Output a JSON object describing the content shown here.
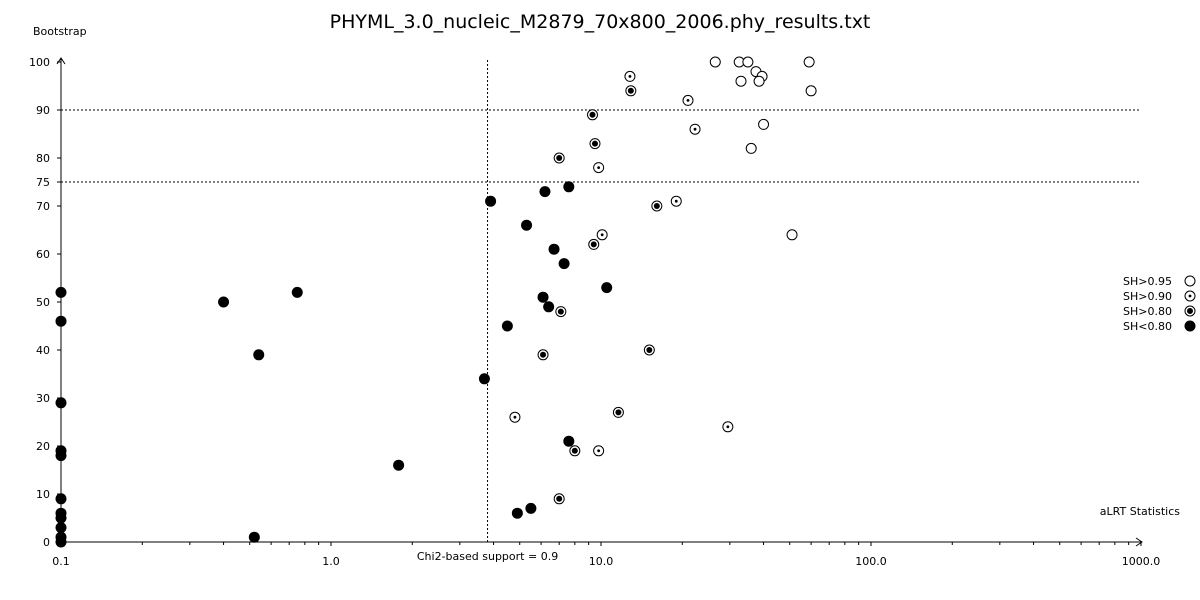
{
  "chart_data": {
    "type": "scatter",
    "title": "PHYML_3.0_nucleic_M2879_70x800_2006.phy_results.txt",
    "xlabel": "aLRT Statistics",
    "ylabel": "Bootstrap",
    "x_scale": "log",
    "xlim": [
      0.1,
      1000.0
    ],
    "ylim": [
      0,
      100
    ],
    "x_tick_labels": [
      "0.1",
      "1.0",
      "10.0",
      "100.0",
      "1000.0"
    ],
    "x_tick_values": [
      0.1,
      1.0,
      10.0,
      100.0,
      1000.0
    ],
    "y_tick_labels": [
      "0",
      "10",
      "20",
      "30",
      "40",
      "50",
      "60",
      "70",
      "75",
      "80",
      "90",
      "100"
    ],
    "y_tick_values": [
      0,
      10,
      20,
      30,
      40,
      50,
      60,
      70,
      75,
      80,
      90,
      100
    ],
    "reference_lines": {
      "vertical": {
        "x": 3.8,
        "label": "Chi2-based support = 0.9"
      },
      "horizontal": [
        75,
        90
      ]
    },
    "legend_placement": "right",
    "series": [
      {
        "name": "SH>0.95",
        "marker": "open-circle",
        "points": [
          {
            "x": 26.5,
            "y": 100
          },
          {
            "x": 32.5,
            "y": 100
          },
          {
            "x": 35.0,
            "y": 100
          },
          {
            "x": 59.0,
            "y": 100
          },
          {
            "x": 37.5,
            "y": 98
          },
          {
            "x": 39.5,
            "y": 97
          },
          {
            "x": 33.0,
            "y": 96
          },
          {
            "x": 38.5,
            "y": 96
          },
          {
            "x": 60.0,
            "y": 94
          },
          {
            "x": 40.0,
            "y": 87
          },
          {
            "x": 36.0,
            "y": 82
          },
          {
            "x": 51.0,
            "y": 64
          }
        ]
      },
      {
        "name": "SH>0.90",
        "marker": "dotted-circle",
        "points": [
          {
            "x": 12.8,
            "y": 97
          },
          {
            "x": 21.0,
            "y": 92
          },
          {
            "x": 22.3,
            "y": 86
          },
          {
            "x": 9.8,
            "y": 78
          },
          {
            "x": 19.0,
            "y": 71
          },
          {
            "x": 10.1,
            "y": 64
          },
          {
            "x": 4.8,
            "y": 26
          },
          {
            "x": 29.5,
            "y": 24
          },
          {
            "x": 9.8,
            "y": 19
          }
        ]
      },
      {
        "name": "SH>0.80",
        "marker": "bullseye-circle",
        "points": [
          {
            "x": 12.9,
            "y": 94
          },
          {
            "x": 9.3,
            "y": 89
          },
          {
            "x": 9.5,
            "y": 83
          },
          {
            "x": 7.0,
            "y": 80
          },
          {
            "x": 16.1,
            "y": 70
          },
          {
            "x": 9.4,
            "y": 62
          },
          {
            "x": 7.1,
            "y": 48
          },
          {
            "x": 15.1,
            "y": 40
          },
          {
            "x": 6.1,
            "y": 39
          },
          {
            "x": 11.6,
            "y": 27
          },
          {
            "x": 8.0,
            "y": 19
          },
          {
            "x": 7.0,
            "y": 9
          }
        ]
      },
      {
        "name": "SH<0.80",
        "marker": "filled-circle",
        "points": [
          {
            "x": 0.1,
            "y": 52
          },
          {
            "x": 0.1,
            "y": 46
          },
          {
            "x": 0.1,
            "y": 29
          },
          {
            "x": 0.1,
            "y": 19
          },
          {
            "x": 0.1,
            "y": 18
          },
          {
            "x": 0.1,
            "y": 9
          },
          {
            "x": 0.1,
            "y": 6
          },
          {
            "x": 0.1,
            "y": 5
          },
          {
            "x": 0.1,
            "y": 3
          },
          {
            "x": 0.1,
            "y": 1
          },
          {
            "x": 0.1,
            "y": 0
          },
          {
            "x": 0.4,
            "y": 50
          },
          {
            "x": 0.75,
            "y": 52
          },
          {
            "x": 0.54,
            "y": 39
          },
          {
            "x": 0.52,
            "y": 1
          },
          {
            "x": 1.78,
            "y": 16
          },
          {
            "x": 3.7,
            "y": 34
          },
          {
            "x": 3.9,
            "y": 71
          },
          {
            "x": 4.5,
            "y": 45
          },
          {
            "x": 4.9,
            "y": 6
          },
          {
            "x": 5.3,
            "y": 66
          },
          {
            "x": 5.5,
            "y": 7
          },
          {
            "x": 6.2,
            "y": 73
          },
          {
            "x": 6.1,
            "y": 51
          },
          {
            "x": 6.4,
            "y": 49
          },
          {
            "x": 6.7,
            "y": 61
          },
          {
            "x": 7.3,
            "y": 58
          },
          {
            "x": 7.6,
            "y": 74
          },
          {
            "x": 7.6,
            "y": 21
          },
          {
            "x": 10.5,
            "y": 53
          }
        ]
      }
    ]
  }
}
